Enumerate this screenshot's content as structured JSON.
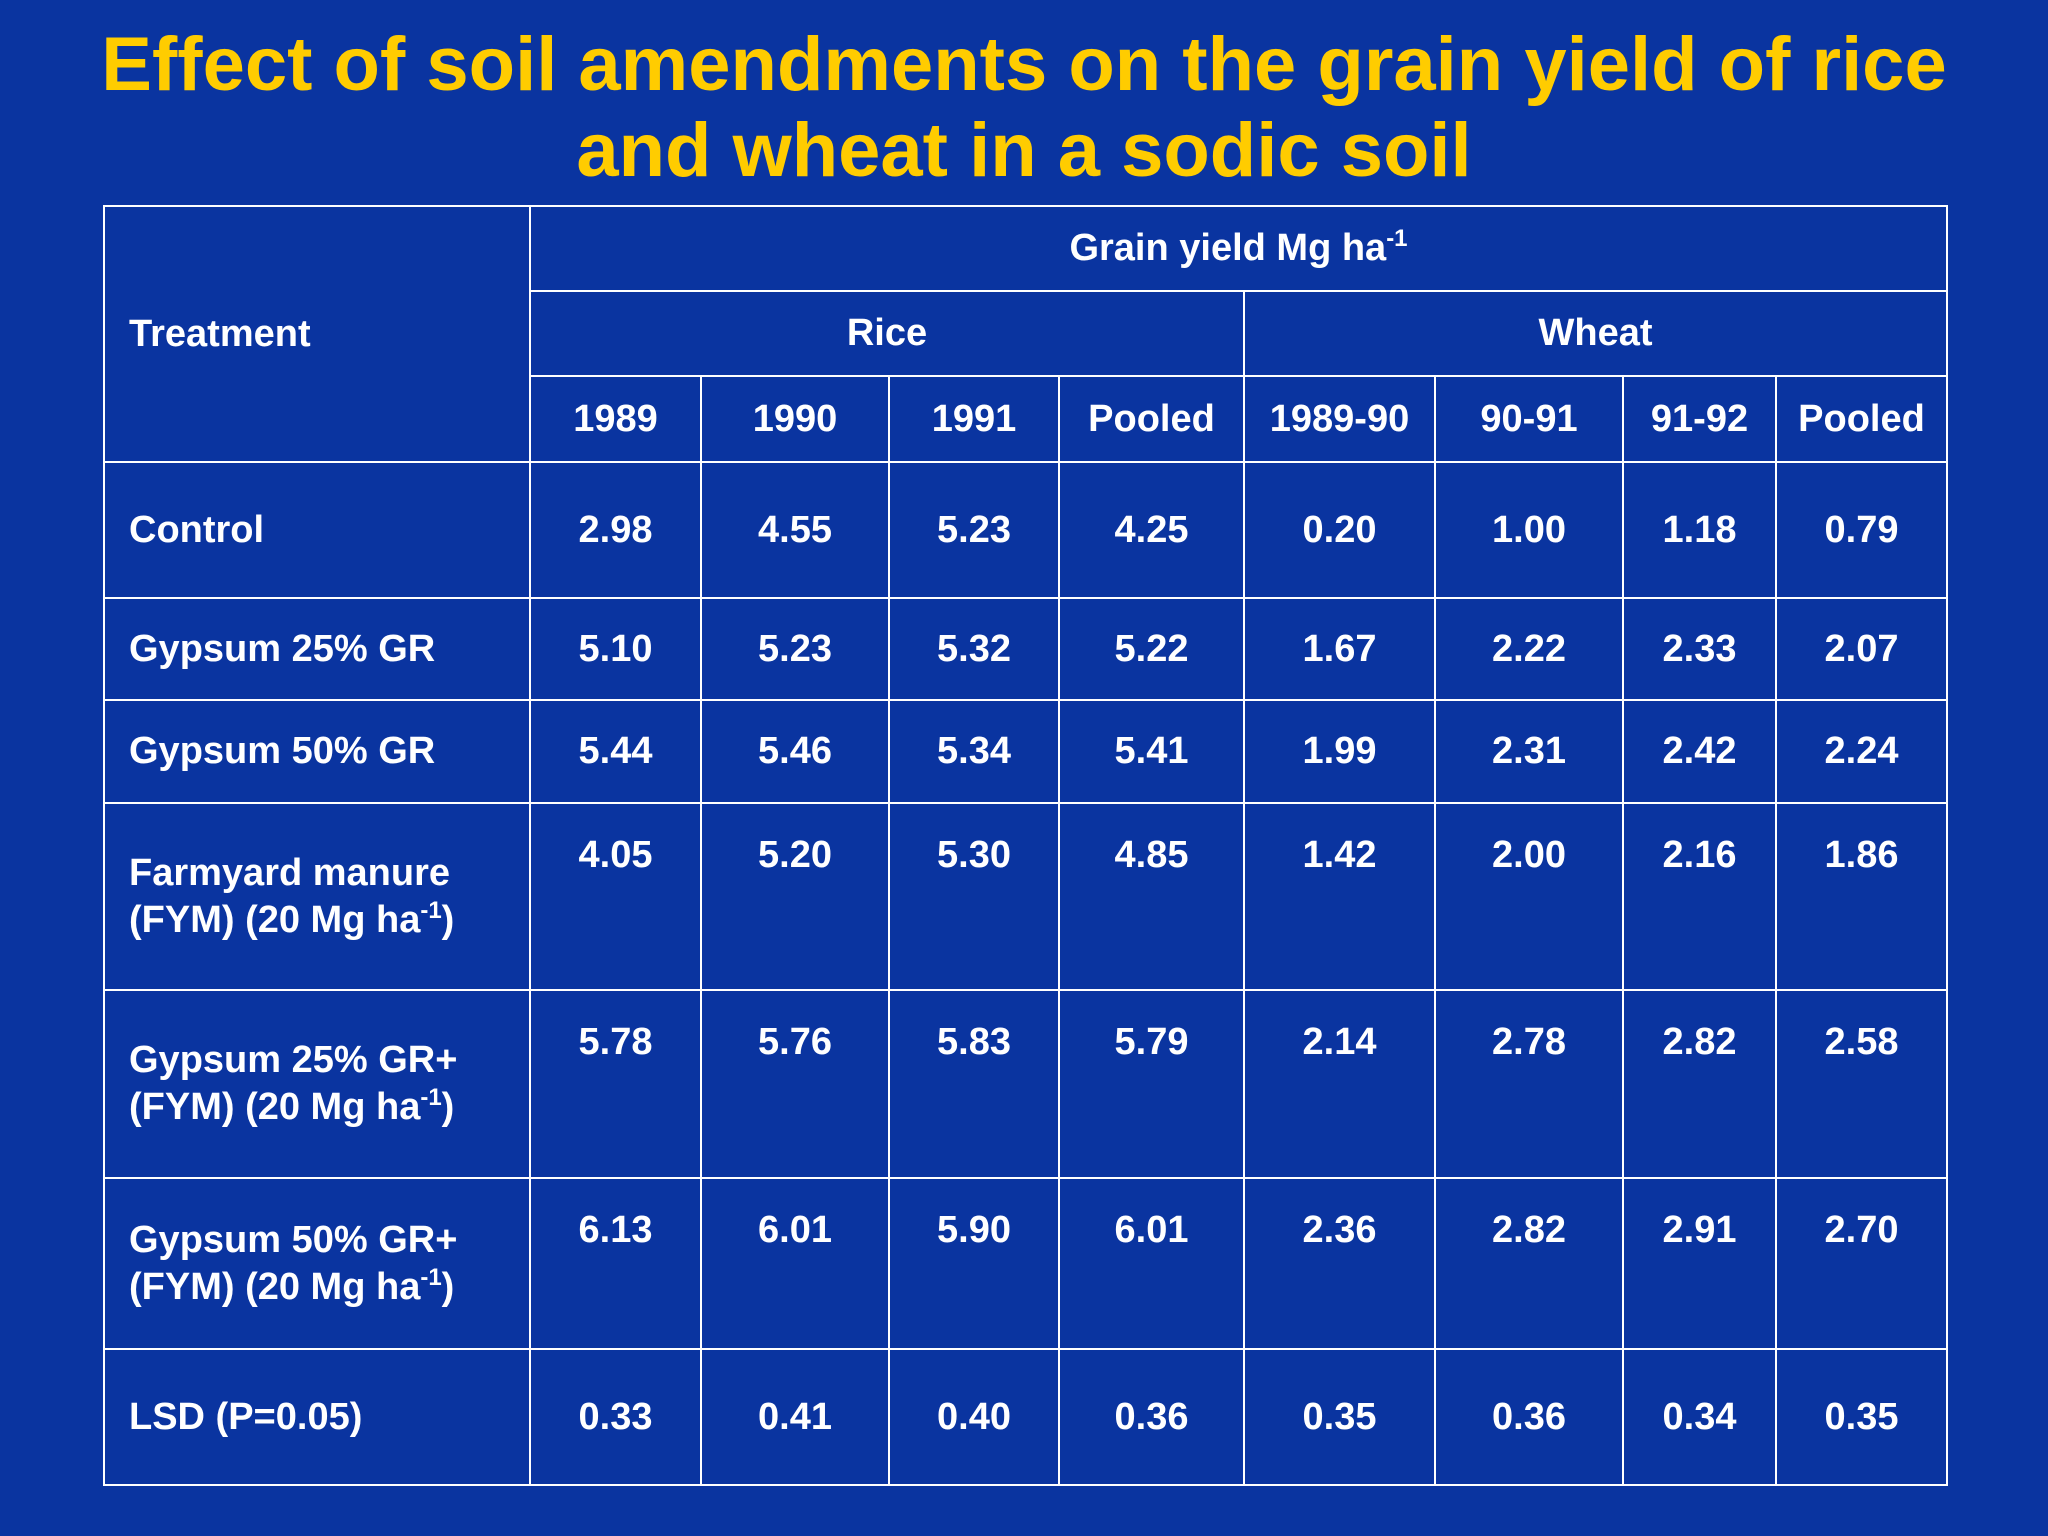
{
  "header": {
    "title_lines": [
      "Effect of soil amendments on the grain yield of rice",
      "and wheat in a sodic soil"
    ]
  },
  "table": {
    "treatment_header": "Treatment",
    "group_header": {
      "text": "Grain yield Mg ha",
      "sup": "-1"
    },
    "crops": [
      "Rice",
      "Wheat"
    ],
    "columns": [
      "1989",
      "1990",
      "1991",
      "Pooled",
      "1989-90",
      "90-91",
      "91-92",
      "Pooled"
    ],
    "rows": [
      {
        "treatment": [
          "Control"
        ],
        "values": [
          "2.98",
          "4.55",
          "5.23",
          "4.25",
          "0.20",
          "1.00",
          "1.18",
          "0.79"
        ]
      },
      {
        "treatment": [
          "Gypsum 25% GR"
        ],
        "values": [
          "5.10",
          "5.23",
          "5.32",
          "5.22",
          "1.67",
          "2.22",
          "2.33",
          "2.07"
        ]
      },
      {
        "treatment": [
          "Gypsum 50% GR"
        ],
        "values": [
          "5.44",
          "5.46",
          "5.34",
          "5.41",
          "1.99",
          "2.31",
          "2.42",
          "2.24"
        ]
      },
      {
        "treatment": [
          "Farmyard manure",
          "(FYM) (20 Mg ha"
        ],
        "sup": "-1",
        "suffix": ")",
        "values": [
          "4.05",
          "5.20",
          "5.30",
          "4.85",
          "1.42",
          "2.00",
          "2.16",
          "1.86"
        ]
      },
      {
        "treatment": [
          "Gypsum 25% GR+",
          "(FYM) (20 Mg ha"
        ],
        "sup": "-1",
        "suffix": ")",
        "values": [
          "5.78",
          "5.76",
          "5.83",
          "5.79",
          "2.14",
          "2.78",
          "2.82",
          "2.58"
        ]
      },
      {
        "treatment": [
          "Gypsum 50% GR+",
          "(FYM) (20 Mg ha"
        ],
        "sup": "-1",
        "suffix": ")",
        "values": [
          "6.13",
          "6.01",
          "5.90",
          "6.01",
          "2.36",
          "2.82",
          "2.91",
          "2.70"
        ]
      },
      {
        "treatment": [
          "LSD (P=0.05)"
        ],
        "values": [
          "0.33",
          "0.41",
          "0.40",
          "0.36",
          "0.35",
          "0.36",
          "0.34",
          "0.35"
        ]
      }
    ]
  }
}
